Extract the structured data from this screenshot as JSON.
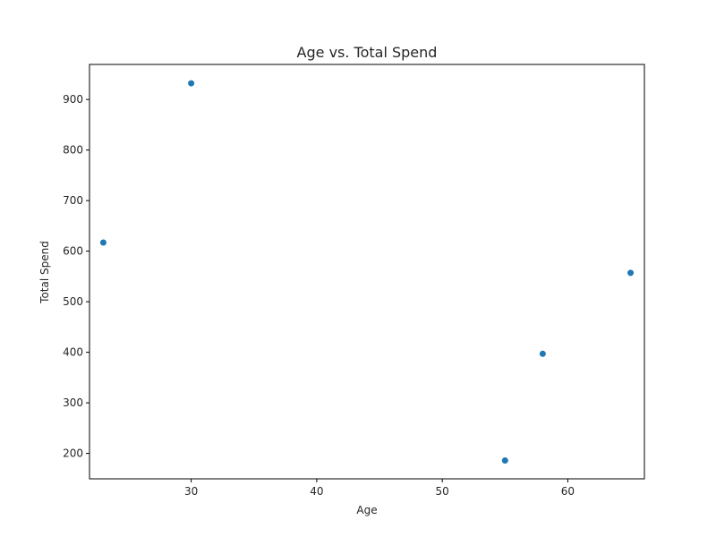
{
  "chart_data": {
    "type": "scatter",
    "title": "Age vs. Total Spend",
    "xlabel": "Age",
    "ylabel": "Total Spend",
    "x": [
      23,
      30,
      55,
      58,
      65
    ],
    "y": [
      617,
      932,
      186,
      397,
      557
    ],
    "xlim": [
      21.9,
      66.1
    ],
    "ylim": [
      149.7,
      969.3
    ],
    "xticks": [
      30,
      40,
      50,
      60
    ],
    "yticks": [
      200,
      300,
      400,
      500,
      600,
      700,
      800,
      900
    ],
    "grid": false,
    "color": "#1f77b4"
  }
}
